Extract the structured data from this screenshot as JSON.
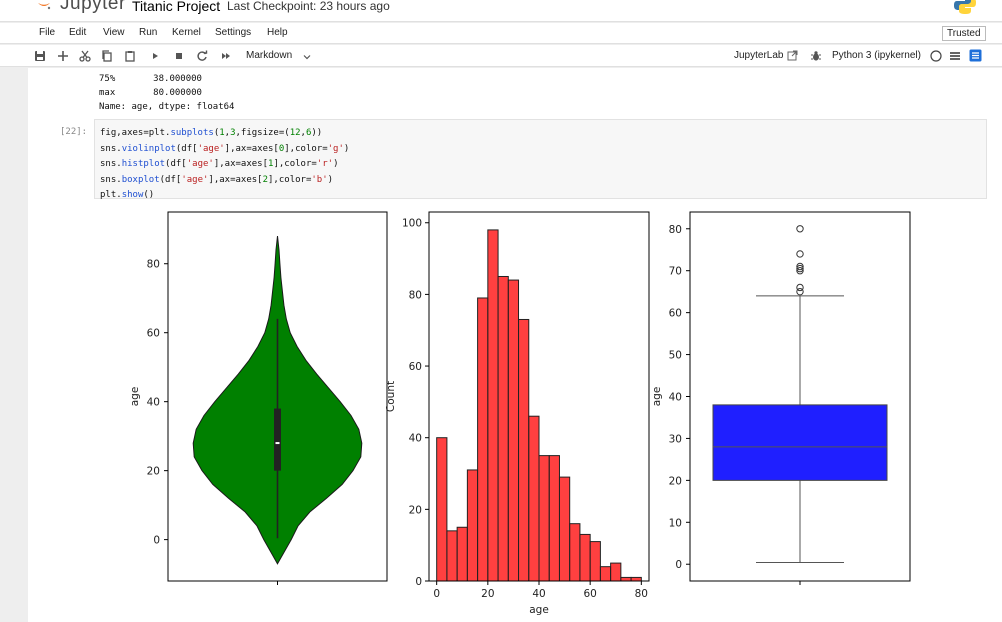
{
  "header": {
    "logo_text": "Jupyter",
    "notebook_title": "Titanic Project",
    "checkpoint": "Last Checkpoint: 23 hours ago",
    "trusted": "Trusted"
  },
  "menu": [
    "File",
    "Edit",
    "View",
    "Run",
    "Kernel",
    "Settings",
    "Help"
  ],
  "toolbar": {
    "icons": [
      "save-icon",
      "add-cell-icon",
      "cut-icon",
      "copy-icon",
      "paste-icon",
      "run-icon",
      "stop-icon",
      "restart-icon",
      "fast-forward-icon"
    ],
    "cell_type": "Markdown",
    "jupyterlab_label": "JupyterLab",
    "kernel_label": "Python 3 (ipykernel)"
  },
  "output_top": {
    "lines": [
      "75%       38.000000",
      "max       80.000000",
      "Name: age, dtype: float64"
    ]
  },
  "cell": {
    "prompt": "[22]:",
    "code": [
      "fig,axes=plt.subplots(1,3,figsize=(12,6))",
      "sns.violinplot(df['age'],ax=axes[0],color='g')",
      "sns.histplot(df['age'],ax=axes[1],color='r')",
      "sns.boxplot(df['age'],ax=axes[2],color='b')",
      "plt.show()"
    ]
  },
  "chart_data": [
    {
      "type": "violin",
      "ylabel": "age",
      "ylim": [
        -12,
        95
      ],
      "yticks": [
        0,
        20,
        40,
        60,
        80
      ],
      "color": "#008000",
      "median": 28,
      "q1": 20,
      "q3": 38,
      "whisker_low": 0.4,
      "whisker_high": 64,
      "density_extent": [
        -7,
        88
      ],
      "grid": false
    },
    {
      "type": "bar",
      "xlabel": "age",
      "ylabel": "Count",
      "xlim": [
        -3,
        83
      ],
      "ylim": [
        0,
        103
      ],
      "xticks": [
        0,
        20,
        40,
        60,
        80
      ],
      "yticks": [
        0,
        20,
        40,
        60,
        80,
        100
      ],
      "color": "#ff0000",
      "bin_edges": [
        0,
        4,
        8,
        12,
        16,
        20,
        24,
        28,
        32,
        36,
        40,
        44,
        48,
        52,
        56,
        60,
        64,
        68,
        72,
        76,
        80
      ],
      "values": [
        40,
        14,
        15,
        31,
        79,
        98,
        85,
        84,
        73,
        46,
        35,
        35,
        29,
        16,
        13,
        11,
        4,
        5,
        1,
        1
      ],
      "grid": false
    },
    {
      "type": "box",
      "ylabel": "age",
      "ylim": [
        -4,
        84
      ],
      "yticks": [
        0,
        10,
        20,
        30,
        40,
        50,
        60,
        70,
        80
      ],
      "color": "#0000ff",
      "q1": 20,
      "median": 28,
      "q3": 38,
      "whisker_low": 0.4,
      "whisker_high": 64,
      "outliers": [
        65,
        66,
        70,
        70.5,
        71,
        74,
        80
      ],
      "grid": false
    }
  ]
}
